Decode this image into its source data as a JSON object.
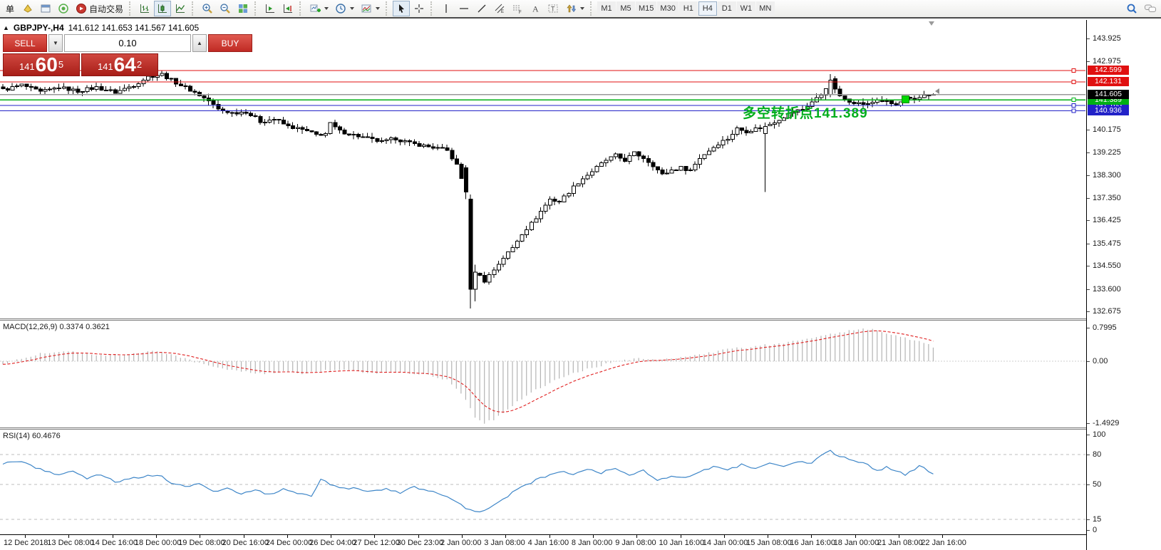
{
  "toolbar": {
    "new_order_label": "单",
    "autotrade_label": "自动交易",
    "timeframes": [
      "M1",
      "M5",
      "M15",
      "M30",
      "H1",
      "H4",
      "D1",
      "W1",
      "MN"
    ],
    "active_timeframe": "H4"
  },
  "chart": {
    "collapse_glyph": "▲",
    "symbol_header": "GBPJPY-,H4",
    "ohlc_text": "141.612 141.653 141.567 141.605",
    "trade_panel": {
      "sell_label": "SELL",
      "buy_label": "BUY",
      "volume": "0.10",
      "sell_prefix": "141",
      "sell_main": "60",
      "sell_sup": "5",
      "buy_prefix": "141",
      "buy_main": "64",
      "buy_sup": "2"
    },
    "annotation": {
      "text": "多空转折点141.389",
      "color": "#00ae1c"
    },
    "colors": {
      "bull": "#ffffff",
      "bear": "#000000",
      "wick": "#000000",
      "red_line": "#e01010",
      "green_line": "#00b014",
      "blue_line": "#2222c8",
      "current_line": "#999999",
      "macd_hist": "#b4b4b4",
      "macd_signal": "#e02020",
      "rsi_line": "#3e86c8",
      "level_dash": "#bcbcbc",
      "marker_green": "#00d800"
    }
  },
  "chart_data": [
    {
      "type": "candlestick",
      "symbol": "GBPJPY-",
      "timeframe": "H4",
      "ohlc_display": {
        "open": "141.612",
        "high": "141.653",
        "low": "141.567",
        "close": "141.605"
      },
      "n_bars": 200,
      "close_anchors": [
        [
          0,
          141.8
        ],
        [
          4,
          142.0
        ],
        [
          8,
          141.7
        ],
        [
          12,
          141.9
        ],
        [
          16,
          141.75
        ],
        [
          20,
          141.9
        ],
        [
          24,
          141.7
        ],
        [
          28,
          142.0
        ],
        [
          31,
          142.35
        ],
        [
          34,
          142.45
        ],
        [
          36,
          142.2
        ],
        [
          38,
          142.0
        ],
        [
          41,
          141.7
        ],
        [
          44,
          141.35
        ],
        [
          46,
          141.0
        ],
        [
          49,
          140.85
        ],
        [
          52,
          140.9
        ],
        [
          55,
          140.5
        ],
        [
          58,
          140.6
        ],
        [
          61,
          140.3
        ],
        [
          64,
          140.15
        ],
        [
          67,
          139.95
        ],
        [
          69,
          140.0
        ],
        [
          70,
          140.4
        ],
        [
          72,
          140.1
        ],
        [
          75,
          139.95
        ],
        [
          78,
          139.8
        ],
        [
          81,
          139.65
        ],
        [
          84,
          139.8
        ],
        [
          87,
          139.6
        ],
        [
          90,
          139.5
        ],
        [
          93,
          139.4
        ],
        [
          95,
          139.3
        ],
        [
          97,
          138.7
        ],
        [
          99,
          137.6
        ],
        [
          100,
          133.6
        ],
        [
          101,
          134.3
        ],
        [
          103,
          133.95
        ],
        [
          105,
          134.4
        ],
        [
          107,
          134.9
        ],
        [
          109,
          135.3
        ],
        [
          111,
          135.9
        ],
        [
          113,
          136.3
        ],
        [
          115,
          136.8
        ],
        [
          117,
          137.3
        ],
        [
          119,
          137.2
        ],
        [
          121,
          137.6
        ],
        [
          123,
          138.0
        ],
        [
          125,
          138.3
        ],
        [
          127,
          138.6
        ],
        [
          129,
          138.9
        ],
        [
          131,
          139.1
        ],
        [
          133,
          138.9
        ],
        [
          135,
          139.2
        ],
        [
          137,
          139.0
        ],
        [
          139,
          138.7
        ],
        [
          141,
          138.3
        ],
        [
          143,
          138.5
        ],
        [
          145,
          138.6
        ],
        [
          147,
          138.5
        ],
        [
          149,
          139.0
        ],
        [
          151,
          139.3
        ],
        [
          153,
          139.6
        ],
        [
          155,
          139.8
        ],
        [
          157,
          140.2
        ],
        [
          159,
          140.1
        ],
        [
          161,
          140.2
        ],
        [
          163,
          140.3
        ],
        [
          165,
          140.5
        ],
        [
          167,
          140.7
        ],
        [
          169,
          140.9
        ],
        [
          171,
          141.0
        ],
        [
          173,
          141.3
        ],
        [
          175,
          141.6
        ],
        [
          177,
          142.2
        ],
        [
          179,
          141.5
        ],
        [
          181,
          141.35
        ],
        [
          183,
          141.25
        ],
        [
          185,
          141.2
        ],
        [
          187,
          141.4
        ],
        [
          189,
          141.3
        ],
        [
          191,
          141.15
        ],
        [
          193,
          141.45
        ],
        [
          195,
          141.35
        ],
        [
          197,
          141.6
        ],
        [
          199,
          141.605
        ]
      ],
      "overrides": {
        "99": [
          138.6,
          137.6,
          138.7,
          137.3
        ],
        "100": [
          137.3,
          133.6,
          137.5,
          132.8
        ],
        "101": [
          133.6,
          134.3,
          134.6,
          133.1
        ],
        "163": [
          140.0,
          140.3,
          140.45,
          137.6
        ],
        "177": [
          141.6,
          142.2,
          142.45,
          141.5
        ],
        "199": [
          141.612,
          141.605,
          141.653,
          141.567
        ]
      },
      "ylim": [
        132.4,
        144.62
      ],
      "y_ticks": [
        "143.925",
        "142.975",
        "140.175",
        "139.225",
        "138.300",
        "137.350",
        "136.425",
        "135.475",
        "134.550",
        "133.600",
        "132.675"
      ],
      "hlines": [
        {
          "price": 142.599,
          "label": "142.599",
          "color": "red"
        },
        {
          "price": 142.131,
          "label": "142.131",
          "color": "red"
        },
        {
          "price": 141.163,
          "label": "141.163",
          "color": "blue"
        },
        {
          "price": 140.936,
          "label": "140.936",
          "color": "blue"
        },
        {
          "price": 141.389,
          "label": "141.389",
          "color": "green"
        },
        {
          "price": 141.605,
          "label": "141.605",
          "color": "current"
        }
      ],
      "marker": {
        "bar": 193,
        "price": 141.42
      },
      "x_labels": [
        "12 Dec 2018",
        "13 Dec 08:00",
        "14 Dec 16:00",
        "18 Dec 00:00",
        "19 Dec 08:00",
        "20 Dec 16:00",
        "24 Dec 00:00",
        "26 Dec 04:00",
        "27 Dec 12:00",
        "30 Dec 23:00",
        "2 Jan 00:00",
        "3 Jan 08:00",
        "4 Jan 16:00",
        "8 Jan 00:00",
        "9 Jan 08:00",
        "10 Jan 16:00",
        "14 Jan 00:00",
        "15 Jan 08:00",
        "16 Jan 16:00",
        "18 Jan 00:00",
        "21 Jan 08:00",
        "22 Jan 16:00"
      ]
    },
    {
      "type": "bar",
      "name": "MACD(12,26,9)",
      "display": "MACD(12,26,9) 0.3374 0.3621",
      "main_value": 0.3374,
      "signal_value": 0.3621,
      "signal_period": 9,
      "values_anchors": [
        [
          0,
          -0.08
        ],
        [
          4,
          0.08
        ],
        [
          8,
          0.18
        ],
        [
          12,
          0.24
        ],
        [
          16,
          0.22
        ],
        [
          20,
          0.16
        ],
        [
          24,
          0.14
        ],
        [
          28,
          0.18
        ],
        [
          32,
          0.24
        ],
        [
          36,
          0.18
        ],
        [
          40,
          0.02
        ],
        [
          44,
          -0.12
        ],
        [
          48,
          -0.22
        ],
        [
          52,
          -0.26
        ],
        [
          56,
          -0.3
        ],
        [
          60,
          -0.26
        ],
        [
          64,
          -0.3
        ],
        [
          68,
          -0.24
        ],
        [
          72,
          -0.2
        ],
        [
          76,
          -0.26
        ],
        [
          80,
          -0.3
        ],
        [
          84,
          -0.26
        ],
        [
          88,
          -0.3
        ],
        [
          92,
          -0.36
        ],
        [
          95,
          -0.45
        ],
        [
          97,
          -0.65
        ],
        [
          99,
          -0.95
        ],
        [
          101,
          -1.35
        ],
        [
          103,
          -1.49
        ],
        [
          105,
          -1.4
        ],
        [
          108,
          -1.15
        ],
        [
          111,
          -0.9
        ],
        [
          114,
          -0.7
        ],
        [
          117,
          -0.52
        ],
        [
          120,
          -0.38
        ],
        [
          124,
          -0.22
        ],
        [
          128,
          -0.1
        ],
        [
          132,
          0.0
        ],
        [
          136,
          0.06
        ],
        [
          140,
          0.02
        ],
        [
          144,
          0.06
        ],
        [
          148,
          0.14
        ],
        [
          152,
          0.22
        ],
        [
          156,
          0.3
        ],
        [
          160,
          0.34
        ],
        [
          164,
          0.4
        ],
        [
          168,
          0.46
        ],
        [
          172,
          0.52
        ],
        [
          176,
          0.62
        ],
        [
          180,
          0.72
        ],
        [
          184,
          0.78
        ],
        [
          186,
          0.76
        ],
        [
          188,
          0.7
        ],
        [
          191,
          0.62
        ],
        [
          194,
          0.52
        ],
        [
          197,
          0.44
        ],
        [
          199,
          0.34
        ]
      ],
      "y_ticks": [
        "0.7995",
        "0.00",
        "-1.4929"
      ],
      "ylim": [
        -1.55,
        0.82
      ]
    },
    {
      "type": "line",
      "name": "RSI(14)",
      "display": "RSI(14) 60.4676",
      "last_value": 60.4676,
      "values_anchors": [
        [
          0,
          71
        ],
        [
          3,
          73
        ],
        [
          6,
          69
        ],
        [
          9,
          63
        ],
        [
          12,
          60
        ],
        [
          15,
          64
        ],
        [
          18,
          56
        ],
        [
          21,
          60
        ],
        [
          24,
          52
        ],
        [
          27,
          56
        ],
        [
          30,
          58
        ],
        [
          33,
          60
        ],
        [
          36,
          52
        ],
        [
          39,
          48
        ],
        [
          42,
          50
        ],
        [
          45,
          43
        ],
        [
          48,
          46
        ],
        [
          51,
          41
        ],
        [
          54,
          44
        ],
        [
          57,
          40
        ],
        [
          60,
          45
        ],
        [
          63,
          41
        ],
        [
          66,
          38
        ],
        [
          68,
          56
        ],
        [
          70,
          50
        ],
        [
          73,
          47
        ],
        [
          76,
          45
        ],
        [
          79,
          43
        ],
        [
          82,
          46
        ],
        [
          85,
          42
        ],
        [
          88,
          47
        ],
        [
          91,
          43
        ],
        [
          94,
          40
        ],
        [
          96,
          35
        ],
        [
          98,
          29
        ],
        [
          100,
          24
        ],
        [
          102,
          22
        ],
        [
          104,
          27
        ],
        [
          106,
          32
        ],
        [
          108,
          38
        ],
        [
          110,
          46
        ],
        [
          113,
          52
        ],
        [
          116,
          58
        ],
        [
          119,
          63
        ],
        [
          122,
          60
        ],
        [
          125,
          65
        ],
        [
          128,
          62
        ],
        [
          131,
          66
        ],
        [
          134,
          60
        ],
        [
          137,
          64
        ],
        [
          140,
          54
        ],
        [
          143,
          58
        ],
        [
          146,
          56
        ],
        [
          149,
          63
        ],
        [
          152,
          68
        ],
        [
          155,
          64
        ],
        [
          158,
          70
        ],
        [
          161,
          66
        ],
        [
          164,
          71
        ],
        [
          167,
          68
        ],
        [
          170,
          72
        ],
        [
          173,
          72
        ],
        [
          175,
          79
        ],
        [
          177,
          83
        ],
        [
          179,
          78
        ],
        [
          181,
          76
        ],
        [
          183,
          73
        ],
        [
          185,
          70
        ],
        [
          187,
          64
        ],
        [
          189,
          67
        ],
        [
          191,
          63
        ],
        [
          193,
          60
        ],
        [
          195,
          64
        ],
        [
          196,
          68
        ],
        [
          197,
          66
        ],
        [
          199,
          60.47
        ]
      ],
      "levels": [
        80,
        50,
        15
      ],
      "y_ticks": [
        "100",
        "80",
        "50",
        "15",
        "0"
      ],
      "ylim": [
        0,
        100
      ]
    }
  ]
}
